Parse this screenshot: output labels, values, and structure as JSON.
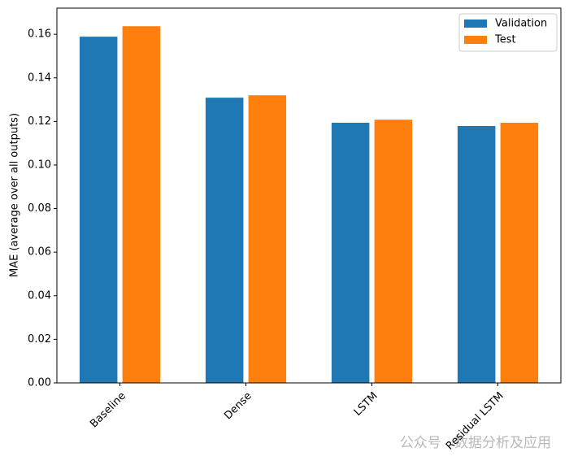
{
  "chart_data": {
    "type": "bar",
    "ylabel": "MAE (average over all outputs)",
    "categories": [
      "Baseline",
      "Dense",
      "LSTM",
      "Residual LSTM"
    ],
    "series": [
      {
        "name": "Validation",
        "color": "#1f77b4",
        "values": [
          0.1589,
          0.1309,
          0.1194,
          0.1179
        ]
      },
      {
        "name": "Test",
        "color": "#ff7f0e",
        "values": [
          0.1637,
          0.132,
          0.1208,
          0.1194
        ]
      }
    ],
    "ylim": [
      0,
      0.172
    ],
    "yticks": [
      {
        "value": 0,
        "label": "0.00"
      },
      {
        "value": 0.02,
        "label": "0.02"
      },
      {
        "value": 0.04,
        "label": "0.04"
      },
      {
        "value": 0.06,
        "label": "0.06"
      },
      {
        "value": 0.08,
        "label": "0.08"
      },
      {
        "value": 0.1,
        "label": "0.10"
      },
      {
        "value": 0.12,
        "label": "0.12"
      },
      {
        "value": 0.14,
        "label": "0.14"
      },
      {
        "value": 0.16,
        "label": "0.16"
      }
    ],
    "legend": "upper right",
    "watermark": "公众号 · 数据分析及应用"
  }
}
